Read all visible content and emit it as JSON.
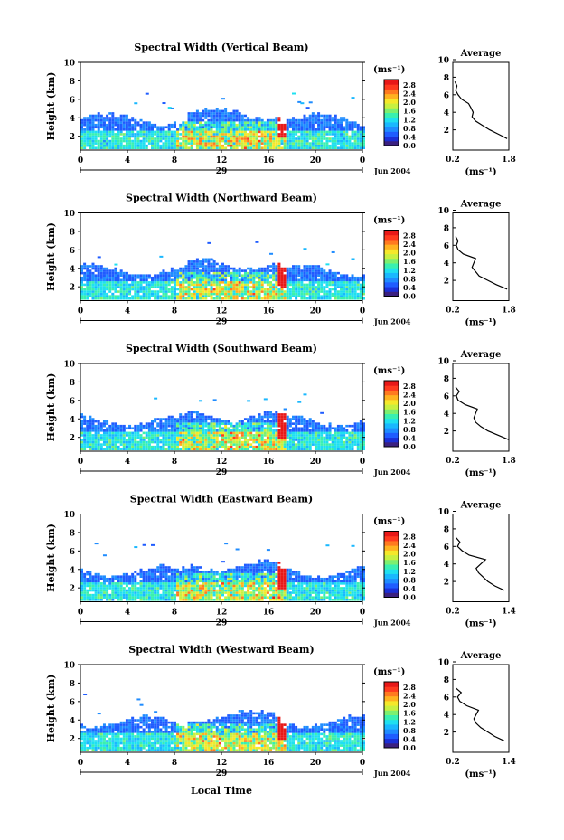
{
  "figure": {
    "month_label": "Jun 2004",
    "date_label": "29",
    "xlabel": "Local Time",
    "unit_label": "(ms⁻¹)",
    "avg_title": "Average",
    "avg_unit": "(ms⁻¹)"
  },
  "colorbar": {
    "ticks": [
      "0.0",
      "0.4",
      "0.8",
      "1.2",
      "1.6",
      "2.0",
      "2.4",
      "2.8"
    ],
    "colors": [
      "#3b2080",
      "#1c2fd6",
      "#1f5cff",
      "#1f8cff",
      "#19b8ff",
      "#1fe0f0",
      "#39f0b0",
      "#7cf070",
      "#c8f040",
      "#f5e82a",
      "#ffb21f",
      "#ff7a1f",
      "#ff3a1f",
      "#e81818"
    ]
  },
  "chart_data": [
    {
      "type": "heatmap",
      "title": "Spectral Width (Vertical Beam)",
      "ylabel": "Height (km)",
      "xlabel": "Local Time",
      "xticks": [
        "0",
        "4",
        "8",
        "12",
        "16",
        "20",
        "0"
      ],
      "yticks": [
        "2",
        "4",
        "6",
        "8",
        "10"
      ],
      "xlim": [
        0,
        24
      ],
      "ylim": [
        0.5,
        10
      ],
      "average_profile": {
        "title": "Average",
        "xticks": [
          "0.2",
          "1.8"
        ],
        "xlim": [
          0.2,
          1.8
        ],
        "height": [
          1.0,
          1.5,
          2.0,
          2.5,
          3.0,
          3.5,
          4.0,
          4.5,
          5.0,
          5.5,
          6.0,
          6.5,
          7.0,
          7.5
        ],
        "width": [
          1.75,
          1.5,
          1.25,
          1.05,
          0.85,
          0.75,
          0.78,
          0.72,
          0.65,
          0.45,
          0.35,
          0.28,
          0.32,
          0.26
        ]
      }
    },
    {
      "type": "heatmap",
      "title": "Spectral Width (Northward Beam)",
      "ylabel": "Height (km)",
      "xticks": [
        "0",
        "4",
        "8",
        "12",
        "16",
        "20",
        "0"
      ],
      "yticks": [
        "2",
        "4",
        "6",
        "8",
        "10"
      ],
      "xlim": [
        0,
        24
      ],
      "ylim": [
        0.5,
        10
      ],
      "average_profile": {
        "title": "Average",
        "xticks": [
          "0.2",
          "1.8"
        ],
        "xlim": [
          0.2,
          1.8
        ],
        "height": [
          1.0,
          1.5,
          2.0,
          2.5,
          3.0,
          3.5,
          4.0,
          4.5,
          5.0,
          5.5,
          6.0,
          6.5,
          7.0
        ],
        "width": [
          1.75,
          1.45,
          1.2,
          0.95,
          0.85,
          0.75,
          0.8,
          0.85,
          0.5,
          0.35,
          0.3,
          0.35,
          0.28
        ]
      }
    },
    {
      "type": "heatmap",
      "title": "Spectral Width (Southward Beam)",
      "ylabel": "Height (km)",
      "xticks": [
        "0",
        "4",
        "8",
        "12",
        "16",
        "20",
        "0"
      ],
      "yticks": [
        "2",
        "4",
        "6",
        "8",
        "10"
      ],
      "xlim": [
        0,
        24
      ],
      "ylim": [
        0.5,
        10
      ],
      "average_profile": {
        "title": "Average",
        "xticks": [
          "0.2",
          "1.8"
        ],
        "xlim": [
          0.2,
          1.8
        ],
        "height": [
          1.0,
          1.5,
          2.0,
          2.5,
          3.0,
          3.5,
          4.0,
          4.5,
          5.0,
          5.5,
          6.0,
          6.5,
          7.0
        ],
        "width": [
          1.8,
          1.5,
          1.2,
          1.0,
          0.85,
          0.8,
          0.85,
          0.9,
          0.55,
          0.35,
          0.3,
          0.38,
          0.28
        ]
      }
    },
    {
      "type": "heatmap",
      "title": "Spectral Width (Eastward Beam)",
      "ylabel": "Height (km)",
      "xticks": [
        "0",
        "4",
        "8",
        "12",
        "16",
        "20",
        "0"
      ],
      "yticks": [
        "2",
        "4",
        "6",
        "8",
        "10"
      ],
      "xlim": [
        0,
        24
      ],
      "ylim": [
        0.5,
        10
      ],
      "average_profile": {
        "title": "Average",
        "xticks": [
          "0.2",
          "1.4"
        ],
        "xlim": [
          0.2,
          1.4
        ],
        "height": [
          1.0,
          1.5,
          2.0,
          2.5,
          3.0,
          3.5,
          4.0,
          4.5,
          5.0,
          5.5,
          6.0,
          6.5,
          7.0
        ],
        "width": [
          1.3,
          1.1,
          0.95,
          0.85,
          0.75,
          0.7,
          0.8,
          0.9,
          0.55,
          0.4,
          0.3,
          0.35,
          0.27
        ]
      }
    },
    {
      "type": "heatmap",
      "title": "Spectral Width (Westward Beam)",
      "ylabel": "Height (km)",
      "xticks": [
        "0",
        "4",
        "8",
        "12",
        "16",
        "20",
        "0"
      ],
      "yticks": [
        "2",
        "4",
        "6",
        "8",
        "10"
      ],
      "xlim": [
        0,
        24
      ],
      "ylim": [
        0.5,
        10
      ],
      "average_profile": {
        "title": "Average",
        "xticks": [
          "0.2",
          "1.4"
        ],
        "xlim": [
          0.2,
          1.4
        ],
        "height": [
          1.0,
          1.5,
          2.0,
          2.5,
          3.0,
          3.5,
          4.0,
          4.5,
          5.0,
          5.5,
          6.0,
          6.5,
          7.0
        ],
        "width": [
          1.3,
          1.1,
          0.95,
          0.8,
          0.7,
          0.65,
          0.7,
          0.75,
          0.5,
          0.35,
          0.3,
          0.38,
          0.27
        ]
      }
    }
  ]
}
